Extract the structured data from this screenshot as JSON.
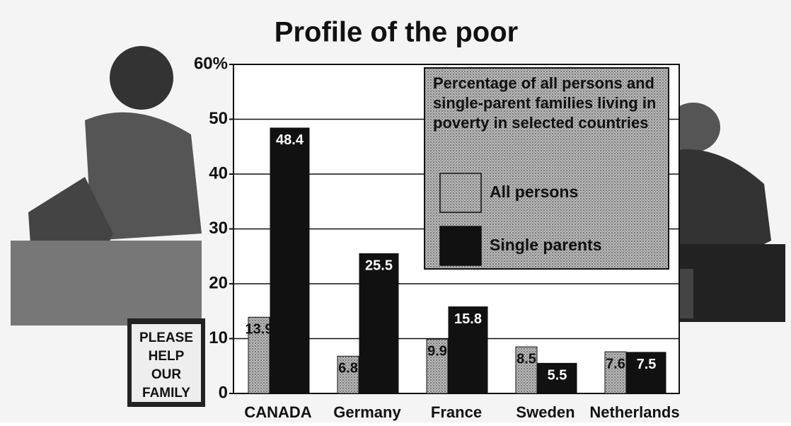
{
  "chart_data": {
    "type": "bar",
    "title": "Profile of the poor",
    "legend_title": "Percentage of all persons and single-parent families living in poverty in selected countries",
    "categories": [
      "CANADA",
      "Germany",
      "France",
      "Sweden",
      "Netherlands"
    ],
    "series": [
      {
        "name": "All persons",
        "color": "#8c8c8c",
        "values": [
          13.9,
          6.8,
          9.9,
          8.5,
          7.6
        ]
      },
      {
        "name": "Single parents",
        "color": "#111111",
        "values": [
          48.4,
          25.5,
          15.8,
          5.5,
          7.5
        ]
      }
    ],
    "ylim": [
      0,
      60
    ],
    "yticks": [
      0,
      10,
      20,
      30,
      40,
      50,
      {
        "value": 60,
        "label": "60%"
      }
    ],
    "grid": true,
    "annotations": [
      "PLEASE",
      "HELP",
      "OUR",
      "FAMILY"
    ]
  }
}
